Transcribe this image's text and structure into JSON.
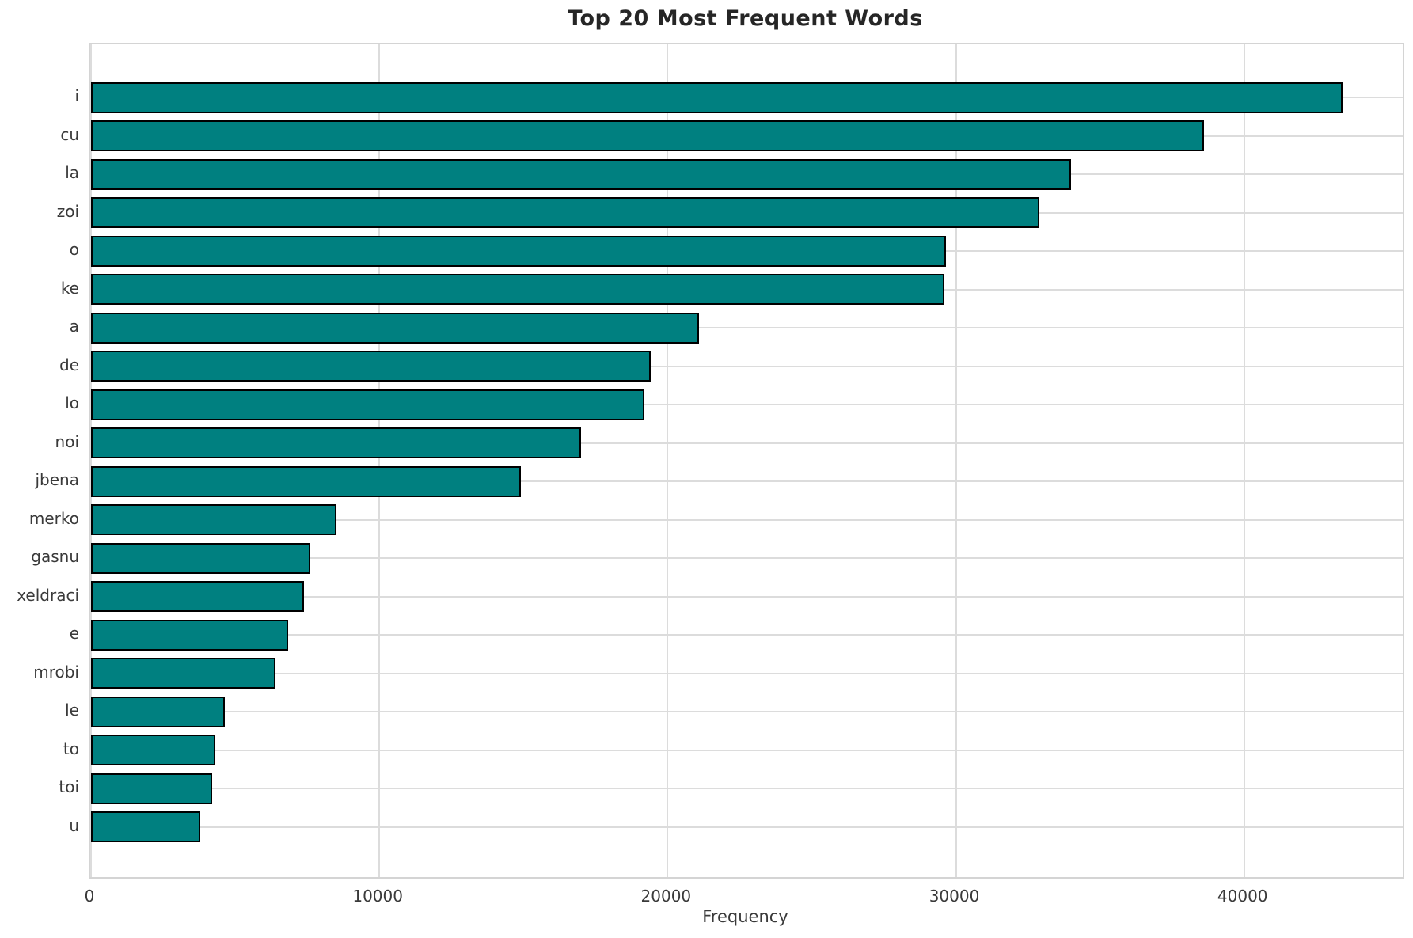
{
  "chart_data": {
    "type": "bar",
    "orientation": "horizontal",
    "title": "Top 20 Most Frequent Words",
    "xlabel": "Frequency",
    "ylabel": "",
    "categories": [
      "i",
      "cu",
      "la",
      "zoi",
      "o",
      "ke",
      "a",
      "de",
      "lo",
      "noi",
      "jbena",
      "merko",
      "gasnu",
      "xeldraci",
      "e",
      "mrobi",
      "le",
      "to",
      "toi",
      "u"
    ],
    "values": [
      43400,
      38600,
      34000,
      32900,
      29650,
      29600,
      21100,
      19400,
      19200,
      17000,
      14900,
      8500,
      7600,
      7400,
      6850,
      6400,
      4650,
      4300,
      4200,
      3800
    ],
    "xlim": [
      0,
      45500
    ],
    "xticks": [
      0,
      10000,
      20000,
      30000,
      40000
    ],
    "xtick_labels": [
      "0",
      "10000",
      "20000",
      "30000",
      "40000"
    ],
    "grid": true,
    "legend": false,
    "bar_color": "#008080",
    "bar_edge_color": "#000000",
    "grid_color": "#dcdcdc",
    "background_color": "#ffffff"
  }
}
